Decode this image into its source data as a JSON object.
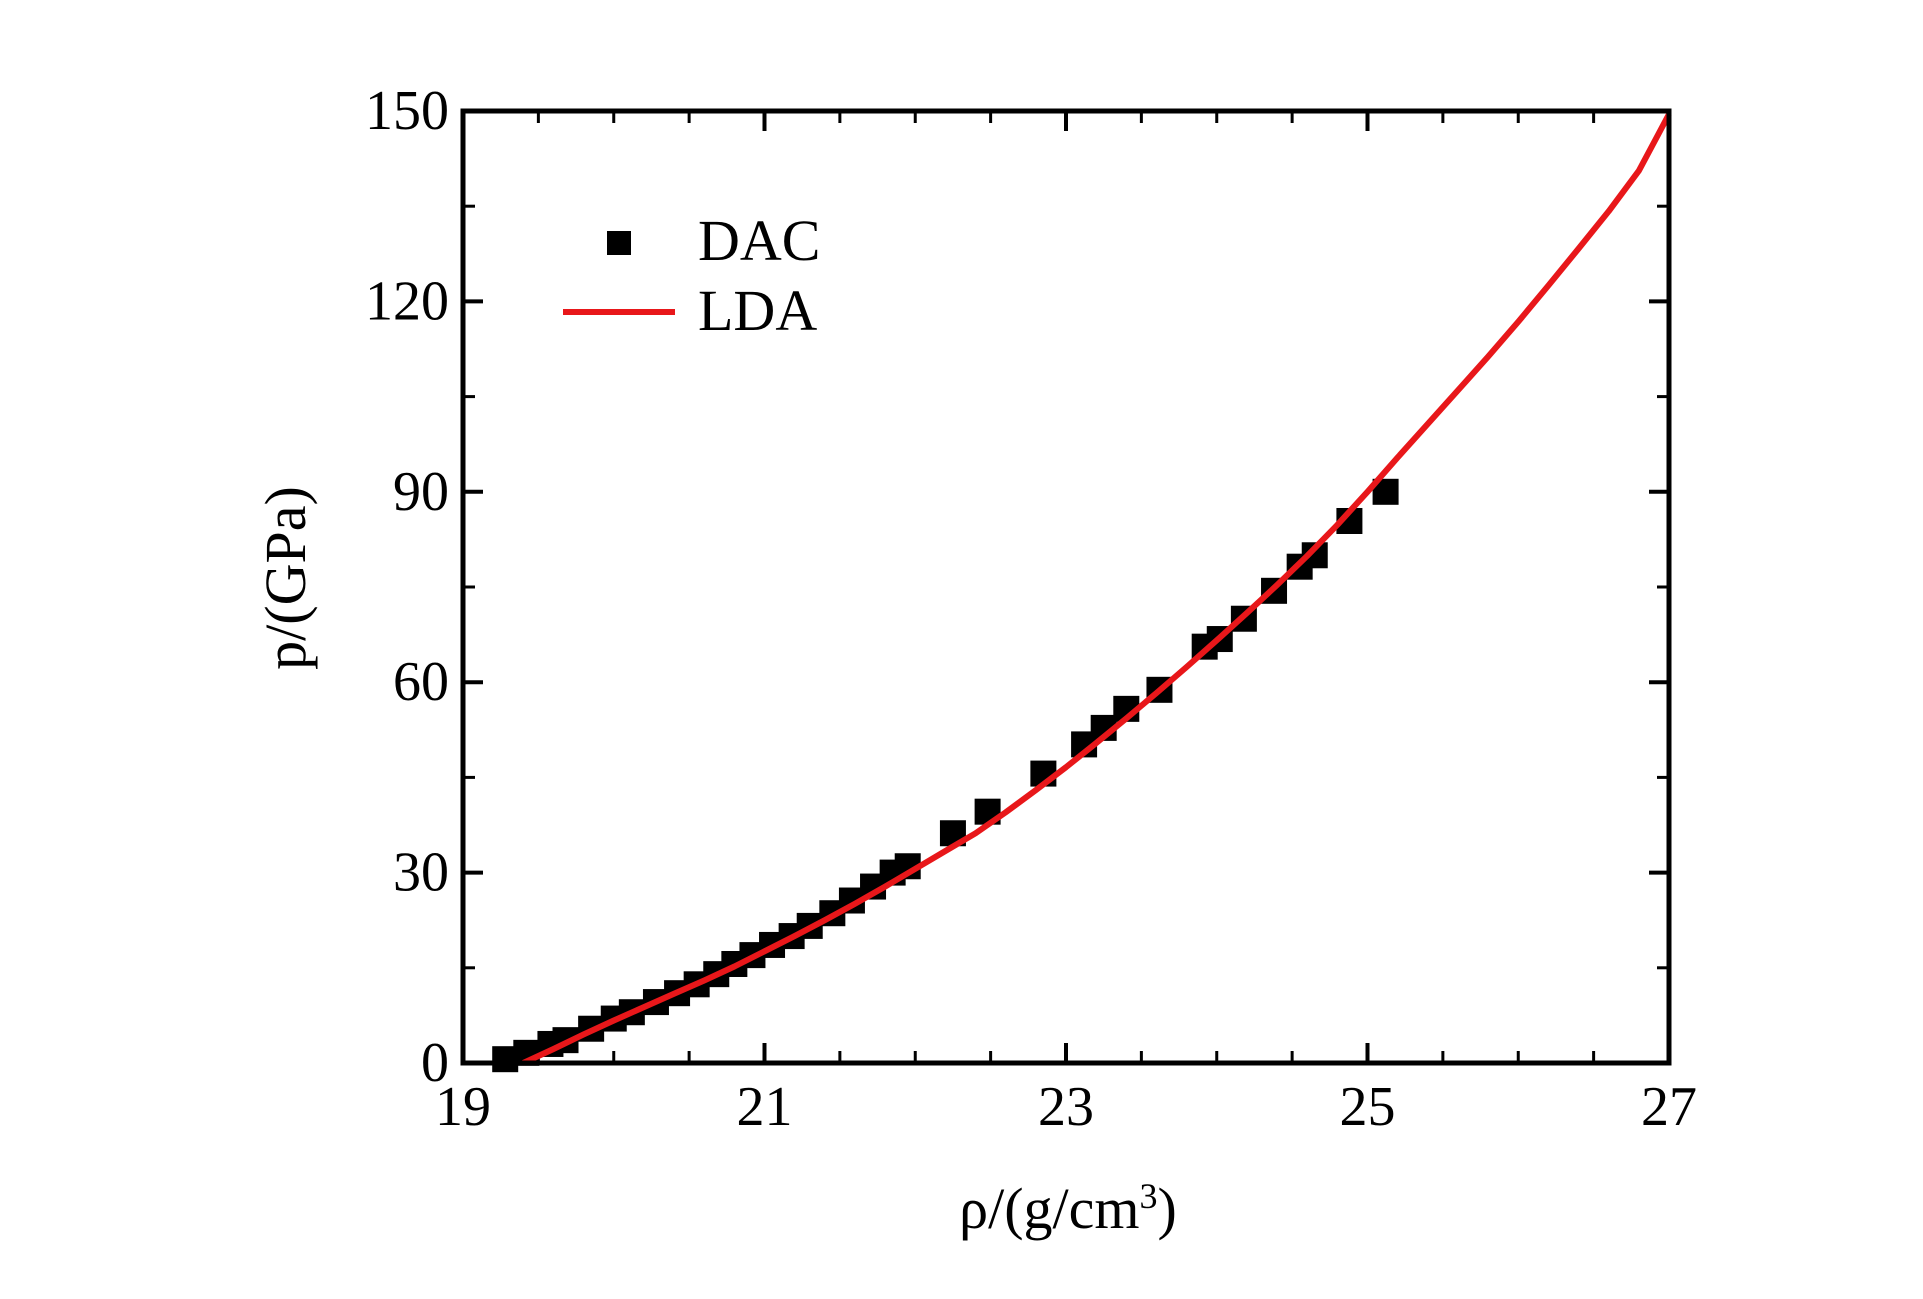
{
  "chart_data": {
    "type": "scatter",
    "title": "",
    "xlabel": "ρ/(g/cm³)",
    "xlabel_parts": {
      "main": "ρ/(g/cm",
      "sup": "3",
      "close": ")"
    },
    "ylabel": "p/(GPa)",
    "xlim": [
      19,
      27
    ],
    "ylim": [
      0,
      150
    ],
    "x_ticks": [
      19,
      21,
      23,
      25,
      27
    ],
    "y_ticks": [
      0,
      30,
      60,
      90,
      120,
      150
    ],
    "x_tick_labels": [
      "19",
      "21",
      "23",
      "25",
      "27"
    ],
    "y_tick_labels": [
      "0",
      "30",
      "60",
      "90",
      "120",
      "150"
    ],
    "x_minor_step": 0.5,
    "y_minor_step": 15,
    "grid": false,
    "legend_position": "top-left",
    "series": [
      {
        "name": "DAC",
        "type": "scatter",
        "marker": "square",
        "color": "#000000",
        "points": [
          [
            19.28,
            0.6
          ],
          [
            19.42,
            1.6
          ],
          [
            19.58,
            3.0
          ],
          [
            19.68,
            3.6
          ],
          [
            19.85,
            5.4
          ],
          [
            20.0,
            7.0
          ],
          [
            20.12,
            8.0
          ],
          [
            20.28,
            9.6
          ],
          [
            20.42,
            11.0
          ],
          [
            20.55,
            12.4
          ],
          [
            20.68,
            14.0
          ],
          [
            20.8,
            15.6
          ],
          [
            20.92,
            17.0
          ],
          [
            21.05,
            18.6
          ],
          [
            21.18,
            20.0
          ],
          [
            21.3,
            21.6
          ],
          [
            21.45,
            23.6
          ],
          [
            21.58,
            25.6
          ],
          [
            21.72,
            27.8
          ],
          [
            21.85,
            30.0
          ],
          [
            21.95,
            31.0
          ],
          [
            22.25,
            36.2
          ],
          [
            22.48,
            39.6
          ],
          [
            22.85,
            45.6
          ],
          [
            23.12,
            50.2
          ],
          [
            23.25,
            52.8
          ],
          [
            23.4,
            55.8
          ],
          [
            23.62,
            58.8
          ],
          [
            23.92,
            65.6
          ],
          [
            24.02,
            66.8
          ],
          [
            24.18,
            70.0
          ],
          [
            24.38,
            74.4
          ],
          [
            24.55,
            78.2
          ],
          [
            24.65,
            80.0
          ],
          [
            24.88,
            85.4
          ],
          [
            25.12,
            90.0
          ]
        ]
      },
      {
        "name": "LDA",
        "type": "line",
        "color": "#e8171a",
        "points": [
          [
            19.4,
            0.0
          ],
          [
            19.6,
            2.2
          ],
          [
            19.8,
            4.5
          ],
          [
            20.0,
            6.7
          ],
          [
            20.2,
            8.8
          ],
          [
            20.4,
            10.9
          ],
          [
            20.6,
            13.0
          ],
          [
            20.8,
            15.2
          ],
          [
            21.0,
            17.6
          ],
          [
            21.2,
            20.0
          ],
          [
            21.4,
            22.5
          ],
          [
            21.6,
            25.1
          ],
          [
            21.8,
            27.8
          ],
          [
            22.0,
            30.6
          ],
          [
            22.2,
            33.4
          ],
          [
            22.4,
            36.2
          ],
          [
            22.6,
            39.5
          ],
          [
            22.8,
            43.0
          ],
          [
            23.0,
            46.6
          ],
          [
            23.2,
            50.4
          ],
          [
            23.4,
            54.3
          ],
          [
            23.6,
            58.3
          ],
          [
            23.8,
            62.4
          ],
          [
            24.0,
            66.6
          ],
          [
            24.2,
            70.9
          ],
          [
            24.4,
            75.3
          ],
          [
            24.6,
            79.9
          ],
          [
            24.8,
            84.8
          ],
          [
            25.0,
            90.0
          ],
          [
            25.2,
            95.4
          ],
          [
            25.4,
            100.7
          ],
          [
            25.6,
            106.0
          ],
          [
            25.8,
            111.3
          ],
          [
            26.0,
            116.8
          ],
          [
            26.2,
            122.5
          ],
          [
            26.4,
            128.3
          ],
          [
            26.6,
            134.2
          ],
          [
            26.8,
            140.6
          ],
          [
            27.0,
            149.5
          ]
        ]
      }
    ]
  }
}
